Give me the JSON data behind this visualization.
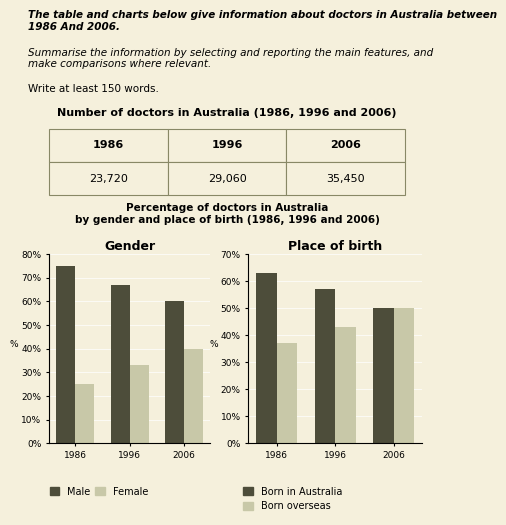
{
  "title_text": "The table and charts below give information about doctors in Australia between\n1986 And 2006.",
  "instruction_text": "Summarise the information by selecting and reporting the main features, and\nmake comparisons where relevant.",
  "word_count_text": "Write at least 150 words.",
  "table_title": "Number of doctors in Australia (1986, 1996 and 2006)",
  "table_years": [
    "1986",
    "1996",
    "2006"
  ],
  "table_values": [
    "23,720",
    "29,060",
    "35,450"
  ],
  "chart_title": "Percentage of doctors in Australia\nby gender and place of birth (1986, 1996 and 2006)",
  "years": [
    "1986",
    "1996",
    "2006"
  ],
  "gender_title": "Gender",
  "gender_male": [
    75,
    67,
    60
  ],
  "gender_female": [
    25,
    33,
    40
  ],
  "gender_ylim": [
    0,
    80
  ],
  "gender_yticks": [
    0,
    10,
    20,
    30,
    40,
    50,
    60,
    70,
    80
  ],
  "birth_title": "Place of birth",
  "birth_australia": [
    63,
    57,
    50
  ],
  "birth_overseas": [
    37,
    43,
    50
  ],
  "birth_ylim": [
    0,
    70
  ],
  "birth_yticks": [
    0,
    10,
    20,
    30,
    40,
    50,
    60,
    70
  ],
  "color_dark": "#4d4d3a",
  "color_light": "#c8c8a8",
  "bg_color": "#f5f0dc",
  "bar_width": 0.35,
  "title_fontsize": 7.5,
  "instruction_fontsize": 7.5,
  "table_title_fontsize": 8,
  "chart_title_fontsize": 7.5,
  "axis_title_fontsize": 9,
  "tick_fontsize": 6.5,
  "legend_fontsize": 7
}
